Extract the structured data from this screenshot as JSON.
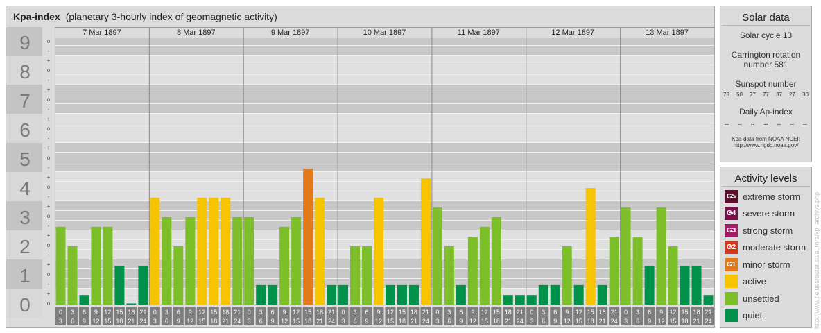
{
  "header": {
    "title": "Kpa-index",
    "subtitle": "(planetary 3-hourly index of geomagnetic activity)"
  },
  "chart_data": {
    "type": "bar",
    "title": "Kpa-index",
    "subtitle": "(planetary 3-hourly index of geomagnetic activity)",
    "ylim": [
      0,
      9
    ],
    "y_tick_labels": [
      "0",
      "1",
      "2",
      "3",
      "4",
      "5",
      "6",
      "7",
      "8",
      "9"
    ],
    "y_minor_tick_labels": [
      "o",
      "+",
      "-"
    ],
    "x_interval_labels": [
      [
        "0",
        "3"
      ],
      [
        "3",
        "6"
      ],
      [
        "6",
        "9"
      ],
      [
        "9",
        "12"
      ],
      [
        "12",
        "15"
      ],
      [
        "15",
        "18"
      ],
      [
        "18",
        "21"
      ],
      [
        "21",
        "24"
      ]
    ],
    "days": [
      {
        "date": "7 Mar 1897",
        "values": [
          2.67,
          2.0,
          0.33,
          2.67,
          2.67,
          1.33,
          0.0,
          1.33
        ]
      },
      {
        "date": "8 Mar 1897",
        "values": [
          3.67,
          3.0,
          2.0,
          3.0,
          3.67,
          3.67,
          3.67,
          3.0
        ]
      },
      {
        "date": "9 Mar 1897",
        "values": [
          3.0,
          0.67,
          0.67,
          2.67,
          3.0,
          4.67,
          3.67,
          0.67
        ]
      },
      {
        "date": "10 Mar 1897",
        "values": [
          0.67,
          2.0,
          2.0,
          3.67,
          0.67,
          0.67,
          0.67,
          4.33
        ]
      },
      {
        "date": "11 Mar 1897",
        "values": [
          3.33,
          2.0,
          0.67,
          2.33,
          2.67,
          3.0,
          0.33,
          0.33
        ]
      },
      {
        "date": "12 Mar 1897",
        "values": [
          0.33,
          0.67,
          0.67,
          2.0,
          0.67,
          4.0,
          0.67,
          2.33
        ]
      },
      {
        "date": "13 Mar 1897",
        "values": [
          3.33,
          2.33,
          1.33,
          3.33,
          2.0,
          1.33,
          1.33,
          0.33
        ]
      }
    ],
    "colors": {
      "quiet": "#00924a",
      "unsettled": "#7cbf29",
      "active": "#f6c400",
      "g1": "#e27a1c",
      "grid_band_dark": "#c8c8c8",
      "grid_band_light": "#e0e0e0",
      "axis_label": "#7a7a7a"
    }
  },
  "solar": {
    "title": "Solar data",
    "cycle": "Solar cycle 13",
    "carrington_line1": "Carrington rotation",
    "carrington_line2": "number 581",
    "sunspot_title": "Sunspot number",
    "sunspots": [
      "78",
      "50",
      "77",
      "77",
      "37",
      "27",
      "30"
    ],
    "ap_title": "Daily Ap-index",
    "ap_values": [
      "--",
      "--",
      "--",
      "--",
      "--",
      "--",
      "--"
    ],
    "credit_line1": "Kpa-data from NOAA NCEI:",
    "credit_line2": "http://www.ngdc.noaa.gov/"
  },
  "activity": {
    "title": "Activity levels",
    "levels": [
      {
        "badge": "G5",
        "label": "extreme storm",
        "color": "#5a0f2c"
      },
      {
        "badge": "G4",
        "label": "severe storm",
        "color": "#74124a"
      },
      {
        "badge": "G3",
        "label": "strong storm",
        "color": "#a81a68"
      },
      {
        "badge": "G2",
        "label": "moderate storm",
        "color": "#d4361c"
      },
      {
        "badge": "G1",
        "label": "minor storm",
        "color": "#e27a1c"
      },
      {
        "badge": "",
        "label": "active",
        "color": "#f6c400"
      },
      {
        "badge": "",
        "label": "unsettled",
        "color": "#7cbf29"
      },
      {
        "badge": "",
        "label": "quiet",
        "color": "#00924a"
      }
    ]
  },
  "watermark": "http://www.tieluesreutar.su/aurora/kp_archive.php"
}
